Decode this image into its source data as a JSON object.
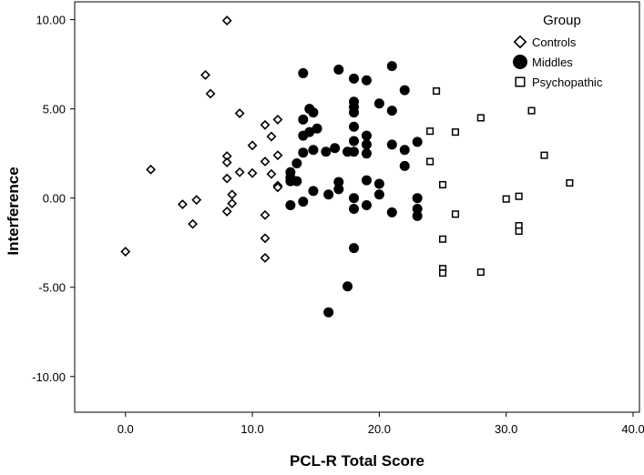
{
  "chart_data": {
    "type": "scatter",
    "title": "",
    "xlabel": "PCL-R Total Score",
    "ylabel": "Interference",
    "xlim": [
      -4,
      40.5
    ],
    "ylim": [
      -12,
      11
    ],
    "x_ticks": [
      0,
      10,
      20,
      30,
      40
    ],
    "x_tick_labels": [
      "0.0",
      "10.0",
      "20.0",
      "30.0",
      "40.0"
    ],
    "y_ticks": [
      10,
      5,
      0,
      -5,
      -10
    ],
    "y_tick_labels": [
      "10.00",
      "5.00",
      "0.00",
      "-5.00",
      "-10.00"
    ],
    "grid": false,
    "legend": {
      "title": "Group",
      "placement": "top-right"
    },
    "series": [
      {
        "name": "Controls",
        "marker": "diamond-open",
        "color": "#000000",
        "points": [
          [
            0,
            -3.0
          ],
          [
            2,
            1.6
          ],
          [
            4.5,
            -0.35
          ],
          [
            5.3,
            -1.45
          ],
          [
            5.6,
            -0.1
          ],
          [
            6.3,
            6.9
          ],
          [
            6.7,
            5.85
          ],
          [
            8,
            9.95
          ],
          [
            8,
            2.35
          ],
          [
            8,
            2.0
          ],
          [
            8,
            1.1
          ],
          [
            8,
            -0.75
          ],
          [
            8.4,
            0.2
          ],
          [
            8.4,
            -0.3
          ],
          [
            9,
            4.75
          ],
          [
            9,
            1.45
          ],
          [
            10,
            1.4
          ],
          [
            10,
            2.95
          ],
          [
            11,
            4.1
          ],
          [
            11,
            2.05
          ],
          [
            11,
            -0.95
          ],
          [
            11,
            -2.25
          ],
          [
            11,
            -3.35
          ],
          [
            11.5,
            3.45
          ],
          [
            11.5,
            1.35
          ],
          [
            12,
            4.4
          ],
          [
            12,
            2.4
          ],
          [
            12,
            0.7
          ],
          [
            12,
            0.6
          ]
        ]
      },
      {
        "name": "Middles",
        "marker": "circle-filled",
        "color": "#000000",
        "points": [
          [
            13,
            1.45
          ],
          [
            13,
            1.15
          ],
          [
            13,
            0.95
          ],
          [
            13,
            -0.4
          ],
          [
            13.5,
            1.95
          ],
          [
            13.5,
            0.95
          ],
          [
            14,
            7.0
          ],
          [
            14,
            4.4
          ],
          [
            14,
            3.5
          ],
          [
            14,
            2.55
          ],
          [
            14,
            -0.2
          ],
          [
            14.5,
            5.0
          ],
          [
            14.5,
            3.7
          ],
          [
            14.8,
            4.8
          ],
          [
            14.8,
            2.7
          ],
          [
            14.8,
            0.4
          ],
          [
            15.1,
            3.9
          ],
          [
            15.8,
            2.6
          ],
          [
            16,
            0.2
          ],
          [
            16,
            -6.4
          ],
          [
            16.5,
            2.8
          ],
          [
            16.8,
            7.2
          ],
          [
            16.8,
            0.9
          ],
          [
            16.8,
            0.5
          ],
          [
            17.5,
            2.6
          ],
          [
            17.5,
            -4.95
          ],
          [
            18,
            6.7
          ],
          [
            18,
            5.4
          ],
          [
            18,
            5.1
          ],
          [
            18,
            4.8
          ],
          [
            18,
            4.0
          ],
          [
            18,
            3.2
          ],
          [
            18,
            2.6
          ],
          [
            18,
            0.0
          ],
          [
            18,
            -0.6
          ],
          [
            18,
            -2.8
          ],
          [
            19,
            6.6
          ],
          [
            19,
            3.5
          ],
          [
            19,
            3.0
          ],
          [
            19,
            2.5
          ],
          [
            19,
            1.0
          ],
          [
            19,
            -0.4
          ],
          [
            20,
            5.3
          ],
          [
            20,
            0.8
          ],
          [
            20,
            0.2
          ],
          [
            21,
            7.4
          ],
          [
            21,
            4.9
          ],
          [
            21,
            3.0
          ],
          [
            21,
            -0.8
          ],
          [
            22,
            6.05
          ],
          [
            22,
            2.7
          ],
          [
            22,
            1.8
          ],
          [
            23,
            3.15
          ],
          [
            23,
            0.0
          ],
          [
            23,
            -0.6
          ],
          [
            23,
            -1.0
          ]
        ]
      },
      {
        "name": "Psychopathic",
        "marker": "square-open",
        "color": "#000000",
        "points": [
          [
            24,
            3.75
          ],
          [
            24,
            2.05
          ],
          [
            24.5,
            6.0
          ],
          [
            25,
            0.75
          ],
          [
            25,
            -2.3
          ],
          [
            25,
            -3.95
          ],
          [
            25,
            -4.2
          ],
          [
            26,
            3.7
          ],
          [
            26,
            -0.9
          ],
          [
            28,
            4.5
          ],
          [
            28,
            -4.15
          ],
          [
            30,
            -0.05
          ],
          [
            31,
            0.1
          ],
          [
            31,
            -1.55
          ],
          [
            31,
            -1.85
          ],
          [
            32,
            4.9
          ],
          [
            33,
            2.4
          ],
          [
            35,
            0.85
          ]
        ]
      }
    ]
  }
}
